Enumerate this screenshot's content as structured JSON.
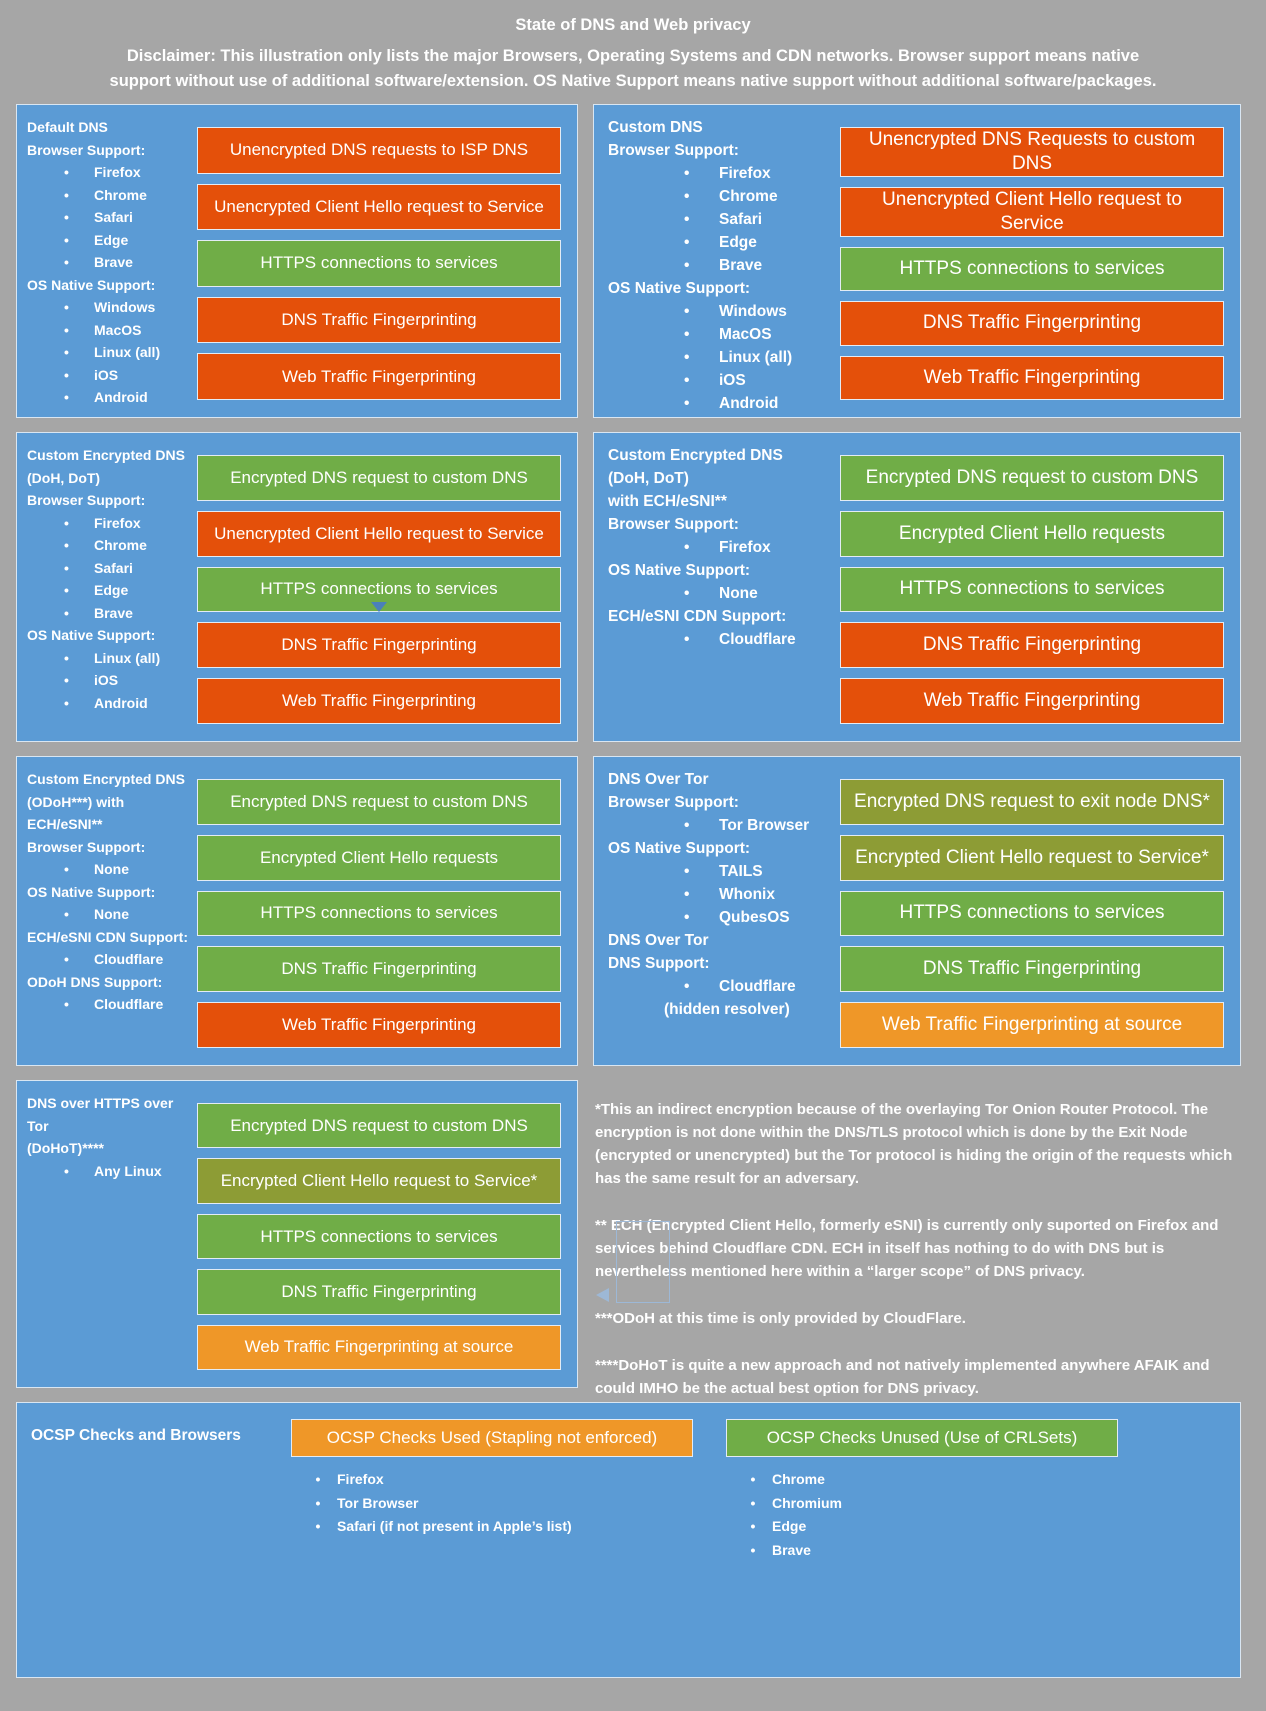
{
  "header": {
    "title": "State of DNS and Web privacy",
    "disclaimer": "Disclaimer: This illustration only lists the major Browsers, Operating Systems and CDN networks. Browser support means native support without use of additional software/extension. OS Native Support means native support without additional software/packages."
  },
  "colors": {
    "bad": "#e4500a",
    "good": "#70ad47",
    "indirect": "#8d9c35",
    "warn": "#ef9728",
    "panel": "#5b9bd5",
    "background": "#a6a6a6"
  },
  "panels": [
    {
      "name": "Default DNS",
      "label_lines": [
        {
          "type": "heading",
          "text": "Default DNS"
        },
        {
          "type": "heading",
          "text": "Browser Support:"
        },
        {
          "type": "bullet",
          "text": "Firefox"
        },
        {
          "type": "bullet",
          "text": "Chrome"
        },
        {
          "type": "bullet",
          "text": "Safari"
        },
        {
          "type": "bullet",
          "text": "Edge"
        },
        {
          "type": "bullet",
          "text": "Brave"
        },
        {
          "type": "heading",
          "text": "OS Native Support:"
        },
        {
          "type": "bullet",
          "text": "Windows"
        },
        {
          "type": "bullet",
          "text": "MacOS"
        },
        {
          "type": "bullet",
          "text": "Linux (all)"
        },
        {
          "type": "bullet",
          "text": "iOS"
        },
        {
          "type": "bullet",
          "text": "Android"
        }
      ],
      "bars": [
        {
          "text": "Unencrypted DNS requests to ISP DNS",
          "color": "bad"
        },
        {
          "text": "Unencrypted Client Hello request to Service",
          "color": "bad"
        },
        {
          "text": "HTTPS connections to services",
          "color": "good"
        },
        {
          "text": "DNS Traffic Fingerprinting",
          "color": "bad"
        },
        {
          "text": "Web Traffic Fingerprinting",
          "color": "bad"
        }
      ]
    },
    {
      "name": "Custom DNS",
      "label_lines": [
        {
          "type": "heading",
          "text": "Custom DNS"
        },
        {
          "type": "heading",
          "text": "Browser Support:"
        },
        {
          "type": "bullet",
          "text": "Firefox"
        },
        {
          "type": "bullet",
          "text": "Chrome"
        },
        {
          "type": "bullet",
          "text": "Safari"
        },
        {
          "type": "bullet",
          "text": "Edge"
        },
        {
          "type": "bullet",
          "text": "Brave"
        },
        {
          "type": "heading",
          "text": "OS Native Support:"
        },
        {
          "type": "bullet",
          "text": "Windows"
        },
        {
          "type": "bullet",
          "text": "MacOS"
        },
        {
          "type": "bullet",
          "text": "Linux (all)"
        },
        {
          "type": "bullet",
          "text": "iOS"
        },
        {
          "type": "bullet",
          "text": "Android"
        }
      ],
      "bars": [
        {
          "text": "Unencrypted DNS Requests to custom DNS",
          "color": "bad"
        },
        {
          "text": "Unencrypted Client Hello request to Service",
          "color": "bad"
        },
        {
          "text": "HTTPS connections to services",
          "color": "good"
        },
        {
          "text": "DNS Traffic Fingerprinting",
          "color": "bad"
        },
        {
          "text": "Web Traffic Fingerprinting",
          "color": "bad"
        }
      ]
    },
    {
      "name": "Custom Encrypted DNS (DoH, DoT)",
      "label_lines": [
        {
          "type": "heading",
          "text": "Custom Encrypted DNS"
        },
        {
          "type": "heading",
          "text": "(DoH, DoT)"
        },
        {
          "type": "heading",
          "text": "Browser Support:"
        },
        {
          "type": "bullet",
          "text": "Firefox"
        },
        {
          "type": "bullet",
          "text": "Chrome"
        },
        {
          "type": "bullet",
          "text": "Safari"
        },
        {
          "type": "bullet",
          "text": "Edge"
        },
        {
          "type": "bullet",
          "text": "Brave"
        },
        {
          "type": "heading",
          "text": "OS Native Support:"
        },
        {
          "type": "bullet",
          "text": "Linux (all)"
        },
        {
          "type": "bullet",
          "text": "iOS"
        },
        {
          "type": "bullet",
          "text": "Android"
        }
      ],
      "bars": [
        {
          "text": "Encrypted DNS request to custom DNS",
          "color": "good"
        },
        {
          "text": "Unencrypted Client Hello request to Service",
          "color": "bad"
        },
        {
          "text": "HTTPS connections to services",
          "color": "good"
        },
        {
          "text": "DNS Traffic Fingerprinting",
          "color": "bad"
        },
        {
          "text": "Web Traffic Fingerprinting",
          "color": "bad"
        }
      ]
    },
    {
      "name": "Custom Encrypted DNS (DoH, DoT) with ECH/eSNI**",
      "label_lines": [
        {
          "type": "heading",
          "text": "Custom Encrypted DNS"
        },
        {
          "type": "heading",
          "text": "(DoH, DoT)"
        },
        {
          "type": "heading",
          "text": "with ECH/eSNI**"
        },
        {
          "type": "heading",
          "text": "Browser Support:"
        },
        {
          "type": "bullet",
          "text": "Firefox"
        },
        {
          "type": "heading",
          "text": "OS Native Support:"
        },
        {
          "type": "bullet",
          "text": "None"
        },
        {
          "type": "heading",
          "text": "ECH/eSNI CDN Support:"
        },
        {
          "type": "bullet",
          "text": "Cloudflare"
        }
      ],
      "bars": [
        {
          "text": "Encrypted DNS request to custom DNS",
          "color": "good"
        },
        {
          "text": "Encrypted Client Hello requests",
          "color": "good"
        },
        {
          "text": "HTTPS connections to services",
          "color": "good"
        },
        {
          "text": "DNS Traffic Fingerprinting",
          "color": "bad"
        },
        {
          "text": "Web Traffic Fingerprinting",
          "color": "bad"
        }
      ]
    },
    {
      "name": "Custom Encrypted DNS (ODoH***) with ECH/eSNI**",
      "label_lines": [
        {
          "type": "heading",
          "text": "Custom Encrypted DNS"
        },
        {
          "type": "heading",
          "text": "(ODoH***) with"
        },
        {
          "type": "heading",
          "text": "ECH/eSNI**"
        },
        {
          "type": "heading",
          "text": "Browser Support:"
        },
        {
          "type": "bullet",
          "text": "None"
        },
        {
          "type": "heading",
          "text": "OS Native Support:"
        },
        {
          "type": "bullet",
          "text": "None"
        },
        {
          "type": "heading",
          "text": "ECH/eSNI CDN Support:"
        },
        {
          "type": "bullet",
          "text": "Cloudflare"
        },
        {
          "type": "heading",
          "text": "ODoH DNS Support:"
        },
        {
          "type": "bullet",
          "text": "Cloudflare"
        }
      ],
      "bars": [
        {
          "text": "Encrypted DNS request to custom DNS",
          "color": "good"
        },
        {
          "text": "Encrypted Client Hello requests",
          "color": "good"
        },
        {
          "text": "HTTPS connections to services",
          "color": "good"
        },
        {
          "text": "DNS Traffic Fingerprinting",
          "color": "good"
        },
        {
          "text": "Web Traffic Fingerprinting",
          "color": "bad"
        }
      ]
    },
    {
      "name": "DNS Over Tor",
      "label_lines": [
        {
          "type": "heading",
          "text": "DNS Over Tor"
        },
        {
          "type": "heading",
          "text": "Browser Support:"
        },
        {
          "type": "bullet",
          "text": "Tor Browser"
        },
        {
          "type": "heading",
          "text": "OS Native Support:"
        },
        {
          "type": "bullet",
          "text": "TAILS"
        },
        {
          "type": "bullet",
          "text": "Whonix"
        },
        {
          "type": "bullet",
          "text": "QubesOS"
        },
        {
          "type": "heading",
          "text": "DNS Over Tor"
        },
        {
          "type": "heading",
          "text": "DNS Support:"
        },
        {
          "type": "bullet",
          "text": "Cloudflare"
        },
        {
          "type": "plain",
          "text": "(hidden resolver)"
        }
      ],
      "bars": [
        {
          "text": "Encrypted DNS request to exit node DNS*",
          "color": "indirect"
        },
        {
          "text": "Encrypted Client Hello request to Service*",
          "color": "indirect"
        },
        {
          "text": "HTTPS connections to services",
          "color": "good"
        },
        {
          "text": "DNS Traffic Fingerprinting",
          "color": "good"
        },
        {
          "text": "Web Traffic Fingerprinting at source",
          "color": "warn"
        }
      ]
    },
    {
      "name": "DNS over HTTPS over Tor (DoHoT)****",
      "label_lines": [
        {
          "type": "heading",
          "text": "DNS over HTTPS over Tor"
        },
        {
          "type": "heading",
          "text": "(DoHoT)****"
        },
        {
          "type": "bullet",
          "text": "Any Linux"
        }
      ],
      "bars": [
        {
          "text": "Encrypted DNS request to custom DNS",
          "color": "good"
        },
        {
          "text": "Encrypted Client Hello request to Service*",
          "color": "indirect"
        },
        {
          "text": "HTTPS connections to services",
          "color": "good"
        },
        {
          "text": "DNS Traffic Fingerprinting",
          "color": "good"
        },
        {
          "text": "Web Traffic Fingerprinting at source",
          "color": "warn"
        }
      ]
    }
  ],
  "notes": [
    "*This an indirect encryption because of the overlaying Tor Onion Router Protocol. The encryption is not done within the DNS/TLS protocol which is done by the Exit Node (encrypted or unencrypted) but the Tor protocol is hiding the origin of the requests which has the same result for an adversary.",
    "** ECH (Encrypted Client Hello, formerly eSNI) is currently only suported on Firefox and services behind Cloudflare CDN. ECH in itself has nothing to do with DNS but is nevertheless mentioned here within a “larger scope” of DNS privacy.",
    "***ODoH at this time is only provided by CloudFlare.",
    "****DoHoT is quite a new approach and not natively implemented anywhere AFAIK and could IMHO be the actual best option for DNS privacy."
  ],
  "ocsp": {
    "label": "OCSP Checks and Browsers",
    "groups": [
      {
        "header": "OCSP Checks Used (Stapling not enforced)",
        "color": "warn",
        "items": [
          "Firefox",
          "Tor Browser",
          "Safari (if not present in Apple’s list)"
        ]
      },
      {
        "header": "OCSP Checks Unused (Use of CRLSets)",
        "color": "good",
        "items": [
          "Chrome",
          "Chromium",
          "Edge",
          "Brave"
        ]
      }
    ]
  }
}
